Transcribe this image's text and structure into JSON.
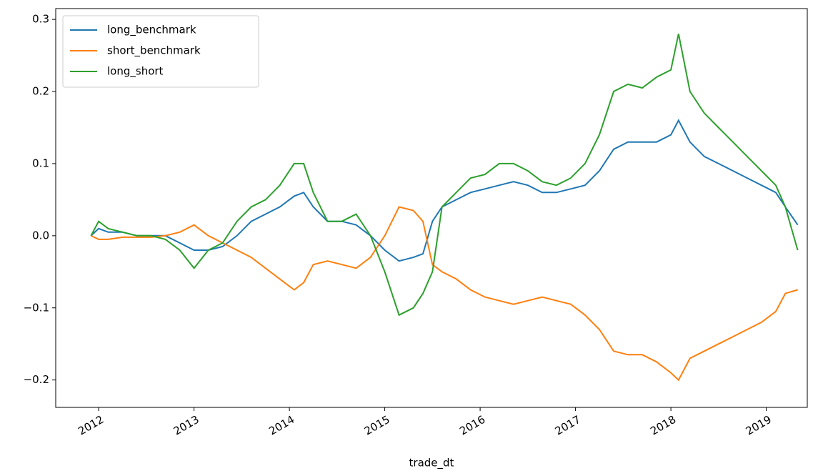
{
  "chart_data": {
    "type": "line",
    "xlabel": "trade_dt",
    "x": [
      2011.92,
      2012.0,
      2012.1,
      2012.25,
      2012.4,
      2012.55,
      2012.7,
      2012.85,
      2013.0,
      2013.15,
      2013.3,
      2013.45,
      2013.6,
      2013.75,
      2013.9,
      2014.05,
      2014.15,
      2014.25,
      2014.4,
      2014.55,
      2014.7,
      2014.85,
      2015.0,
      2015.15,
      2015.3,
      2015.4,
      2015.5,
      2015.6,
      2015.75,
      2015.9,
      2016.05,
      2016.2,
      2016.35,
      2016.5,
      2016.65,
      2016.8,
      2016.95,
      2017.1,
      2017.25,
      2017.4,
      2017.55,
      2017.7,
      2017.85,
      2018.0,
      2018.08,
      2018.2,
      2018.35,
      2018.5,
      2018.65,
      2018.8,
      2018.95,
      2019.1,
      2019.2,
      2019.33
    ],
    "series": [
      {
        "name": "long_benchmark",
        "color": "#1f77b4",
        "values": [
          0,
          0.01,
          0.005,
          0.005,
          0,
          0,
          0,
          -0.01,
          -0.02,
          -0.02,
          -0.015,
          0,
          0.02,
          0.03,
          0.04,
          0.055,
          0.06,
          0.04,
          0.02,
          0.02,
          0.015,
          0,
          -0.02,
          -0.035,
          -0.03,
          -0.025,
          0.02,
          0.04,
          0.05,
          0.06,
          0.065,
          0.07,
          0.075,
          0.07,
          0.06,
          0.06,
          0.065,
          0.07,
          0.09,
          0.12,
          0.13,
          0.13,
          0.13,
          0.14,
          0.16,
          0.13,
          0.11,
          0.1,
          0.09,
          0.08,
          0.07,
          0.06,
          0.04,
          0.015
        ]
      },
      {
        "name": "short_benchmark",
        "color": "#ff7f0e",
        "values": [
          0,
          -0.005,
          -0.005,
          -0.002,
          -0.002,
          -0.002,
          0,
          0.005,
          0.015,
          0,
          -0.01,
          -0.02,
          -0.03,
          -0.045,
          -0.06,
          -0.075,
          -0.065,
          -0.04,
          -0.035,
          -0.04,
          -0.045,
          -0.03,
          0,
          0.04,
          0.035,
          0.02,
          -0.04,
          -0.05,
          -0.06,
          -0.075,
          -0.085,
          -0.09,
          -0.095,
          -0.09,
          -0.085,
          -0.09,
          -0.095,
          -0.11,
          -0.13,
          -0.16,
          -0.165,
          -0.165,
          -0.175,
          -0.19,
          -0.2,
          -0.17,
          -0.16,
          -0.15,
          -0.14,
          -0.13,
          -0.12,
          -0.105,
          -0.08,
          -0.075
        ]
      },
      {
        "name": "long_short",
        "color": "#2ca02c",
        "values": [
          0,
          0.02,
          0.01,
          0.005,
          0,
          0,
          -0.005,
          -0.02,
          -0.045,
          -0.02,
          -0.01,
          0.02,
          0.04,
          0.05,
          0.07,
          0.1,
          0.1,
          0.06,
          0.02,
          0.02,
          0.03,
          0,
          -0.05,
          -0.11,
          -0.1,
          -0.08,
          -0.05,
          0.04,
          0.06,
          0.08,
          0.085,
          0.1,
          0.1,
          0.09,
          0.075,
          0.07,
          0.08,
          0.1,
          0.14,
          0.2,
          0.21,
          0.205,
          0.22,
          0.23,
          0.28,
          0.2,
          0.17,
          0.15,
          0.13,
          0.11,
          0.09,
          0.07,
          0.04,
          -0.02
        ]
      }
    ],
    "xlim": [
      2011.55,
      2019.43
    ],
    "xticks": [
      2012,
      2013,
      2014,
      2015,
      2016,
      2017,
      2018,
      2019
    ],
    "ylim": [
      -0.238,
      0.315
    ],
    "yticks": [
      {
        "value": -0.2,
        "label": "−0.2"
      },
      {
        "value": -0.1,
        "label": "−0.1"
      },
      {
        "value": 0,
        "label": "0.0"
      },
      0.1,
      0.2,
      0.3
    ],
    "grid": false,
    "legend": "upper left"
  }
}
